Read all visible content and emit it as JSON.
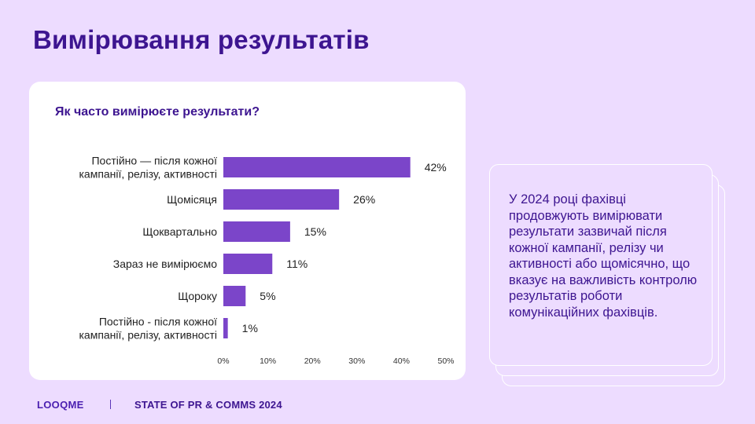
{
  "header": {
    "title": "Вимірювання результатів"
  },
  "chart_data": {
    "type": "bar",
    "orientation": "horizontal",
    "title": "Як часто вимірюєте результати?",
    "categories": [
      [
        "Постійно — після кожної",
        "кампанії, релізу, активності"
      ],
      [
        "Щомісяця"
      ],
      [
        "Щоквартально"
      ],
      [
        "Зараз не вимірюємо"
      ],
      [
        "Щороку"
      ],
      [
        "Постійно - після кожної",
        "кампанії, релізу, активності"
      ]
    ],
    "values": [
      42,
      26,
      15,
      11,
      5,
      1
    ],
    "value_labels": [
      "42%",
      "26%",
      "15%",
      "11%",
      "5%",
      "1%"
    ],
    "xlim": [
      0,
      50
    ],
    "xticks": [
      "0%",
      "10%",
      "20%",
      "30%",
      "40%",
      "50%"
    ],
    "bar_color": "#7b45c9",
    "grid": false,
    "legend": "none"
  },
  "note": {
    "text": "У 2024 році фахівці продовжують вимірювати результати зазвичай після кожної кампанії, релізу чи активності або щомісячно, що вказує на важливість контролю результатів роботи комунікаційних фахівців."
  },
  "footer": {
    "brand": "LOOQME",
    "text": "STATE OF PR & COMMS 2024"
  },
  "colors": {
    "background": "#eddcff",
    "accent": "#3d1590",
    "bar": "#7b45c9"
  }
}
